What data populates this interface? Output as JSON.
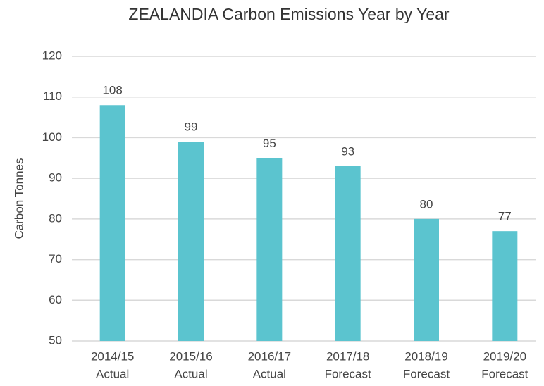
{
  "chart_data": {
    "type": "bar",
    "title": "ZEALANDIA Carbon Emissions Year by Year",
    "y_label": "Carbon Tonnes",
    "categories": [
      [
        "2014/15",
        "Actual"
      ],
      [
        "2015/16",
        "Actual"
      ],
      [
        "2016/17",
        "Actual"
      ],
      [
        "2017/18",
        "Forecast"
      ],
      [
        "2018/19",
        "Forecast"
      ],
      [
        "2019/20",
        "Forecast"
      ]
    ],
    "values": [
      108,
      99,
      95,
      93,
      80,
      77
    ],
    "color": "#5bc4cf",
    "ylim": [
      50,
      120
    ],
    "yticks": [
      50,
      60,
      70,
      80,
      90,
      100,
      110,
      120
    ],
    "grid": true
  }
}
